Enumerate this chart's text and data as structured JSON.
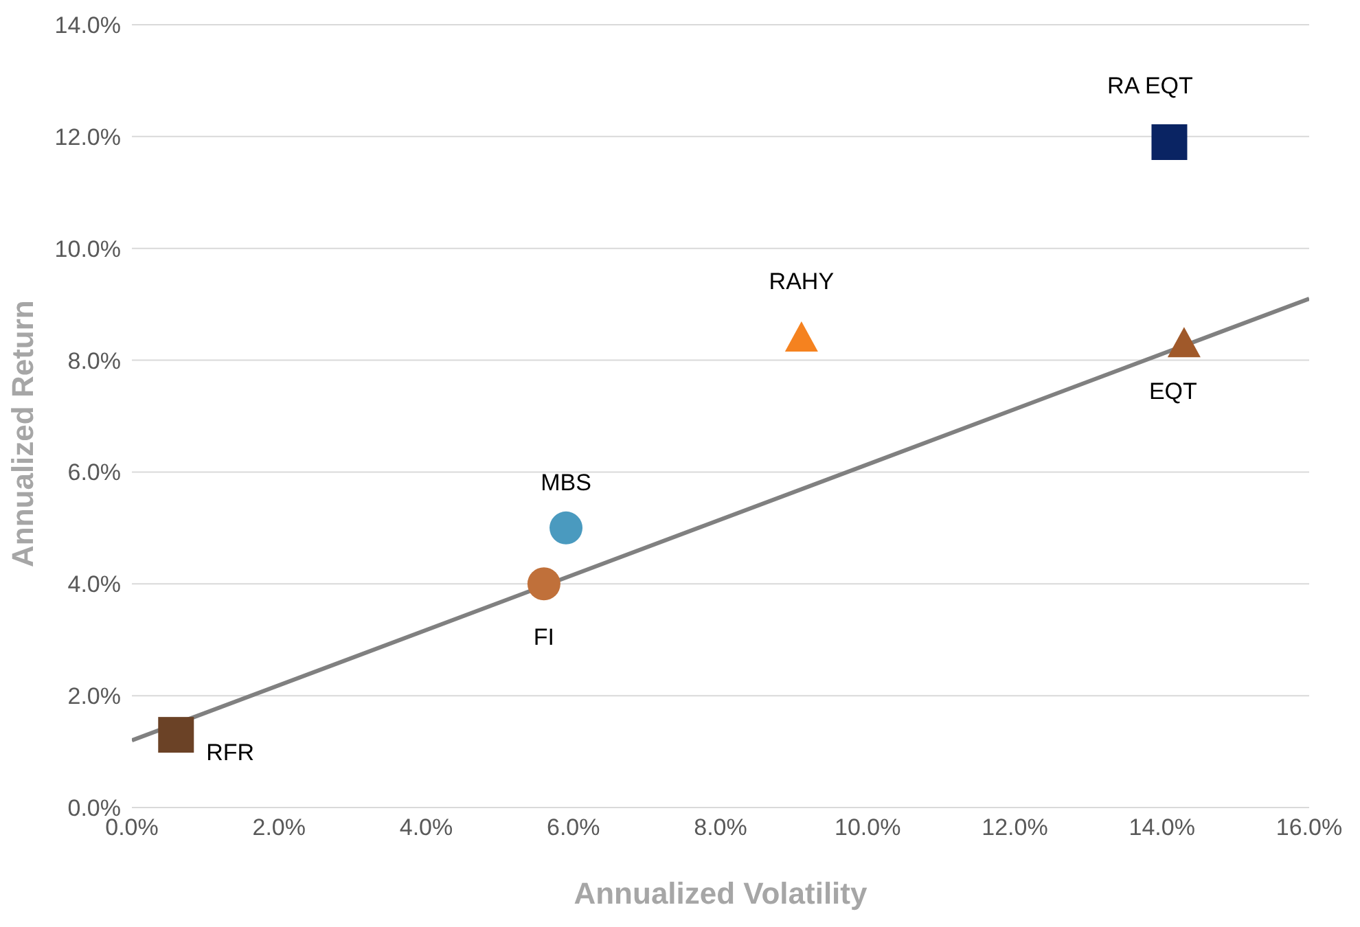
{
  "chart_data": {
    "type": "scatter",
    "xlabel": "Annualized Volatility",
    "ylabel": "Annualized Return",
    "xlim": [
      0,
      16
    ],
    "xticks": [
      {
        "value": 0,
        "label": "0.0%"
      },
      {
        "value": 2,
        "label": "2.0%"
      },
      {
        "value": 4,
        "label": "4.0%"
      },
      {
        "value": 6,
        "label": "6.0%"
      },
      {
        "value": 8,
        "label": "8.0%"
      },
      {
        "value": 10,
        "label": "10.0%"
      },
      {
        "value": 12,
        "label": "12.0%"
      },
      {
        "value": 14,
        "label": "14.0%"
      },
      {
        "value": 16,
        "label": "16.0%"
      }
    ],
    "ylim": [
      0,
      14
    ],
    "yticks": [
      {
        "value": 0,
        "label": "0.0%"
      },
      {
        "value": 2,
        "label": "2.0%"
      },
      {
        "value": 4,
        "label": "4.0%"
      },
      {
        "value": 6,
        "label": "6.0%"
      },
      {
        "value": 8,
        "label": "8.0%"
      },
      {
        "value": 10,
        "label": "10.0%"
      },
      {
        "value": 12,
        "label": "12.0%"
      },
      {
        "value": 14,
        "label": "14.0%"
      }
    ],
    "grid": "y",
    "series": [
      {
        "name": "RFR",
        "color": "#6b4226",
        "marker": "square",
        "x": [
          0.6
        ],
        "values": [
          1.3
        ]
      },
      {
        "name": "FI",
        "color": "#c0703a",
        "marker": "circle",
        "x": [
          5.6
        ],
        "values": [
          4.0
        ]
      },
      {
        "name": "MBS",
        "color": "#4a9abf",
        "marker": "circle",
        "x": [
          5.9
        ],
        "values": [
          5.0
        ]
      },
      {
        "name": "RAHY",
        "color": "#f5821f",
        "marker": "triangle",
        "x": [
          9.1
        ],
        "values": [
          8.4
        ]
      },
      {
        "name": "EQT",
        "color": "#a0592a",
        "marker": "triangle",
        "x": [
          14.3
        ],
        "values": [
          8.3
        ]
      },
      {
        "name": "RA EQT",
        "color": "#0a2463",
        "marker": "square",
        "x": [
          14.1
        ],
        "values": [
          11.9
        ]
      },
      {
        "type": "line",
        "color": "#808080",
        "x": [
          0,
          16
        ],
        "values": [
          1.2,
          9.1
        ]
      }
    ]
  }
}
